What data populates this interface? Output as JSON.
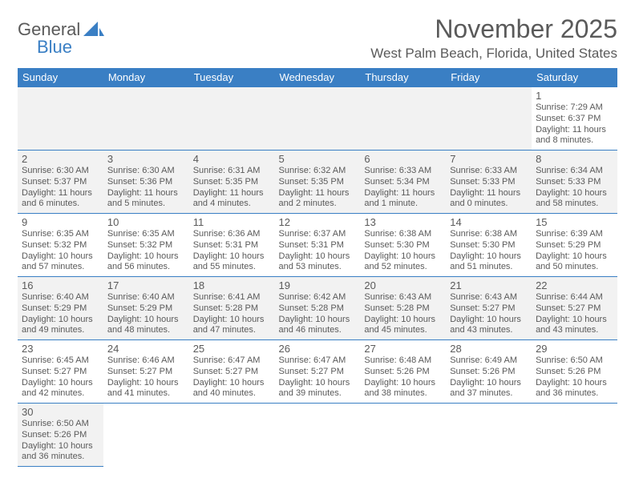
{
  "brand": {
    "word1": "General",
    "word2": "Blue"
  },
  "title": "November 2025",
  "location": "West Palm Beach, Florida, United States",
  "colors": {
    "header_bg": "#3a7fc4",
    "header_text": "#ffffff",
    "border": "#3a7fc4",
    "shade": "#f2f2f2",
    "text": "#5a5a5a"
  },
  "dow": [
    "Sunday",
    "Monday",
    "Tuesday",
    "Wednesday",
    "Thursday",
    "Friday",
    "Saturday"
  ],
  "weeks": [
    [
      null,
      null,
      null,
      null,
      null,
      null,
      {
        "n": "1",
        "sr": "7:29 AM",
        "ss": "6:37 PM",
        "dl": "11 hours and 8 minutes."
      }
    ],
    [
      {
        "n": "2",
        "sr": "6:30 AM",
        "ss": "5:37 PM",
        "dl": "11 hours and 6 minutes."
      },
      {
        "n": "3",
        "sr": "6:30 AM",
        "ss": "5:36 PM",
        "dl": "11 hours and 5 minutes."
      },
      {
        "n": "4",
        "sr": "6:31 AM",
        "ss": "5:35 PM",
        "dl": "11 hours and 4 minutes."
      },
      {
        "n": "5",
        "sr": "6:32 AM",
        "ss": "5:35 PM",
        "dl": "11 hours and 2 minutes."
      },
      {
        "n": "6",
        "sr": "6:33 AM",
        "ss": "5:34 PM",
        "dl": "11 hours and 1 minute."
      },
      {
        "n": "7",
        "sr": "6:33 AM",
        "ss": "5:33 PM",
        "dl": "11 hours and 0 minutes."
      },
      {
        "n": "8",
        "sr": "6:34 AM",
        "ss": "5:33 PM",
        "dl": "10 hours and 58 minutes."
      }
    ],
    [
      {
        "n": "9",
        "sr": "6:35 AM",
        "ss": "5:32 PM",
        "dl": "10 hours and 57 minutes."
      },
      {
        "n": "10",
        "sr": "6:35 AM",
        "ss": "5:32 PM",
        "dl": "10 hours and 56 minutes."
      },
      {
        "n": "11",
        "sr": "6:36 AM",
        "ss": "5:31 PM",
        "dl": "10 hours and 55 minutes."
      },
      {
        "n": "12",
        "sr": "6:37 AM",
        "ss": "5:31 PM",
        "dl": "10 hours and 53 minutes."
      },
      {
        "n": "13",
        "sr": "6:38 AM",
        "ss": "5:30 PM",
        "dl": "10 hours and 52 minutes."
      },
      {
        "n": "14",
        "sr": "6:38 AM",
        "ss": "5:30 PM",
        "dl": "10 hours and 51 minutes."
      },
      {
        "n": "15",
        "sr": "6:39 AM",
        "ss": "5:29 PM",
        "dl": "10 hours and 50 minutes."
      }
    ],
    [
      {
        "n": "16",
        "sr": "6:40 AM",
        "ss": "5:29 PM",
        "dl": "10 hours and 49 minutes."
      },
      {
        "n": "17",
        "sr": "6:40 AM",
        "ss": "5:29 PM",
        "dl": "10 hours and 48 minutes."
      },
      {
        "n": "18",
        "sr": "6:41 AM",
        "ss": "5:28 PM",
        "dl": "10 hours and 47 minutes."
      },
      {
        "n": "19",
        "sr": "6:42 AM",
        "ss": "5:28 PM",
        "dl": "10 hours and 46 minutes."
      },
      {
        "n": "20",
        "sr": "6:43 AM",
        "ss": "5:28 PM",
        "dl": "10 hours and 45 minutes."
      },
      {
        "n": "21",
        "sr": "6:43 AM",
        "ss": "5:27 PM",
        "dl": "10 hours and 43 minutes."
      },
      {
        "n": "22",
        "sr": "6:44 AM",
        "ss": "5:27 PM",
        "dl": "10 hours and 43 minutes."
      }
    ],
    [
      {
        "n": "23",
        "sr": "6:45 AM",
        "ss": "5:27 PM",
        "dl": "10 hours and 42 minutes."
      },
      {
        "n": "24",
        "sr": "6:46 AM",
        "ss": "5:27 PM",
        "dl": "10 hours and 41 minutes."
      },
      {
        "n": "25",
        "sr": "6:47 AM",
        "ss": "5:27 PM",
        "dl": "10 hours and 40 minutes."
      },
      {
        "n": "26",
        "sr": "6:47 AM",
        "ss": "5:27 PM",
        "dl": "10 hours and 39 minutes."
      },
      {
        "n": "27",
        "sr": "6:48 AM",
        "ss": "5:26 PM",
        "dl": "10 hours and 38 minutes."
      },
      {
        "n": "28",
        "sr": "6:49 AM",
        "ss": "5:26 PM",
        "dl": "10 hours and 37 minutes."
      },
      {
        "n": "29",
        "sr": "6:50 AM",
        "ss": "5:26 PM",
        "dl": "10 hours and 36 minutes."
      }
    ],
    [
      {
        "n": "30",
        "sr": "6:50 AM",
        "ss": "5:26 PM",
        "dl": "10 hours and 36 minutes."
      },
      null,
      null,
      null,
      null,
      null,
      null
    ]
  ],
  "labels": {
    "sunrise": "Sunrise:",
    "sunset": "Sunset:",
    "daylight": "Daylight:"
  }
}
